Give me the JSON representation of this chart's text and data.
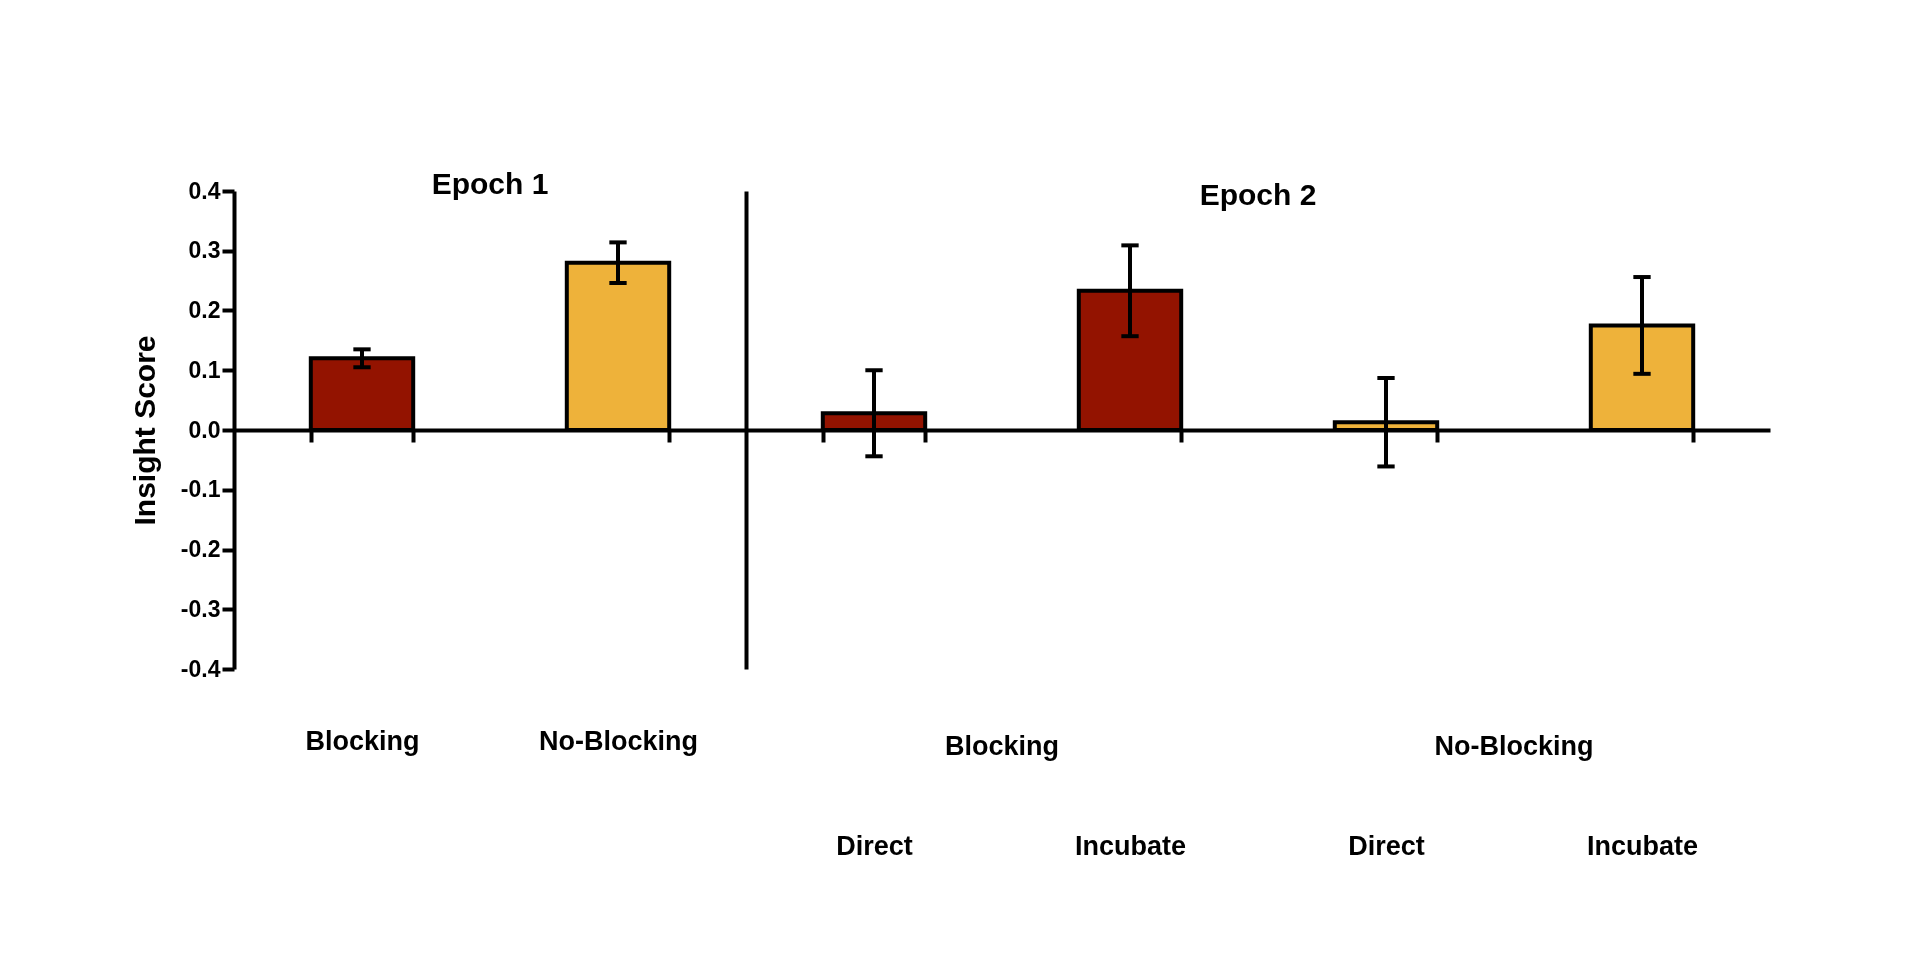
{
  "chart_data": [
    {
      "type": "bar",
      "title": "Epoch 1",
      "ylabel": "Insight Score",
      "categories": [
        "Blocking",
        "No-Blocking"
      ],
      "values": [
        0.12,
        0.28
      ],
      "errors": [
        0.015,
        0.034
      ],
      "colors": [
        "#931300",
        "#eeb23a"
      ],
      "ylim": [
        -0.4,
        0.4
      ],
      "yticks": [
        0.4,
        0.3,
        0.2,
        0.1,
        {
          "value": 0,
          "label": "0.0"
        },
        -0.1,
        -0.2,
        -0.3,
        -0.4
      ]
    },
    {
      "type": "bar",
      "title": "Epoch 2",
      "categories": [
        "Direct",
        "Incubate",
        "Direct",
        "Incubate"
      ],
      "values": [
        0.028,
        0.233,
        0.013,
        0.175
      ],
      "errors": [
        0.072,
        0.076,
        0.074,
        0.081
      ],
      "colors": [
        "#931300",
        "#931300",
        "#eeb23a",
        "#eeb23a"
      ],
      "ylim": [
        -0.4,
        0.4
      ],
      "tick_labels": "x",
      "annotations": [
        "Blocking",
        "No-Blocking"
      ]
    }
  ]
}
